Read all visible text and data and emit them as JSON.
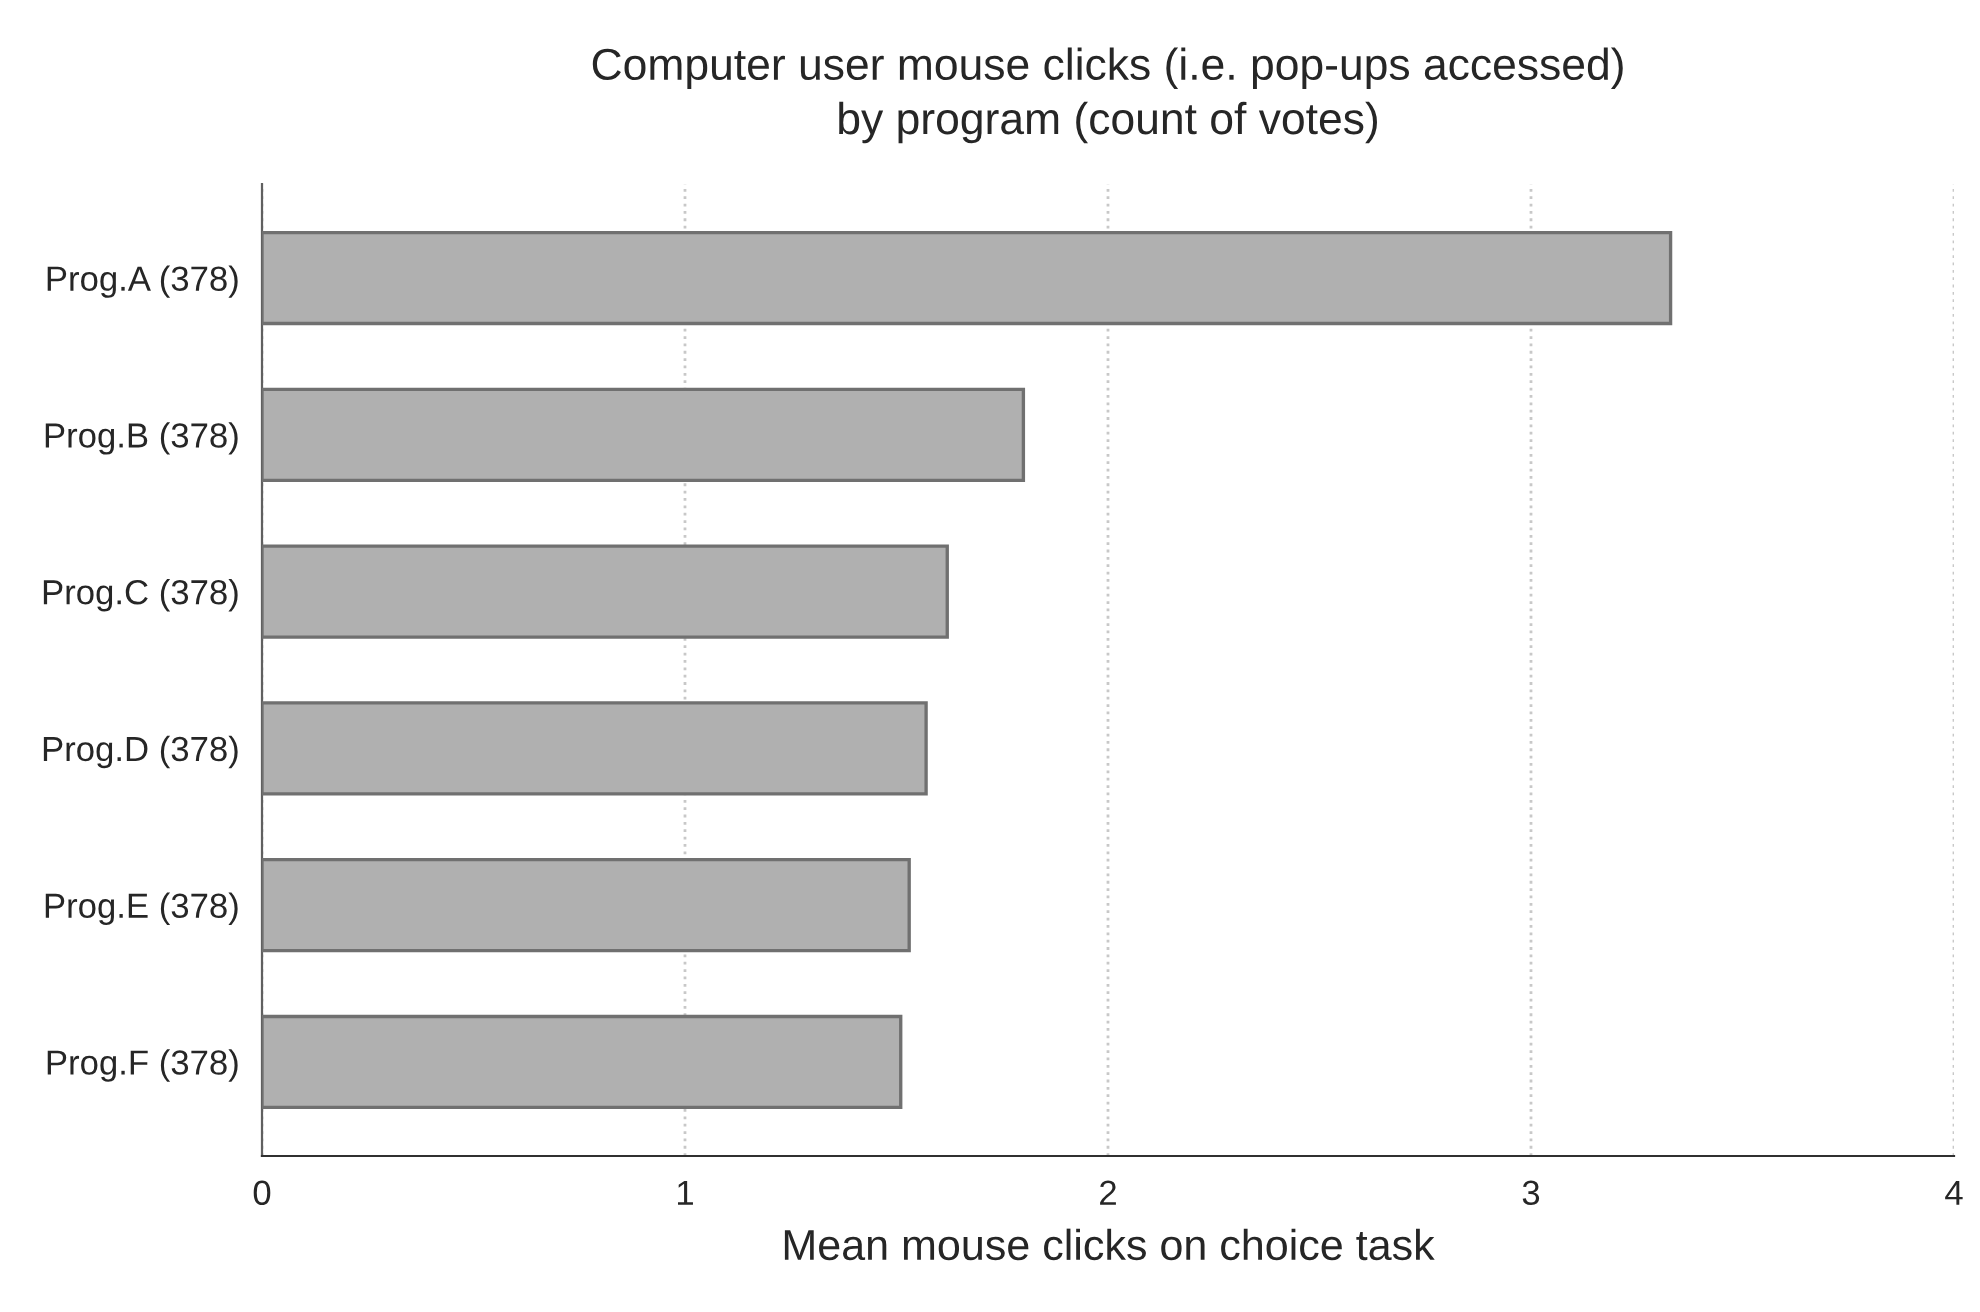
{
  "chart_data": {
    "type": "bar",
    "orientation": "horizontal",
    "title": "Computer user mouse clicks (i.e. pop-ups accessed)\nby program (count of votes)",
    "xlabel": "Mean mouse clicks on choice task",
    "categories": [
      "Prog.A (378)",
      "Prog.B (378)",
      "Prog.C (378)",
      "Prog.D (378)",
      "Prog.E (378)",
      "Prog.F (378)"
    ],
    "values": [
      3.33,
      1.8,
      1.62,
      1.57,
      1.53,
      1.51
    ],
    "color": "#b0b0b0",
    "xlim": [
      0,
      4
    ],
    "xticks": [
      0,
      1,
      2,
      3,
      4
    ],
    "grid": "x"
  }
}
